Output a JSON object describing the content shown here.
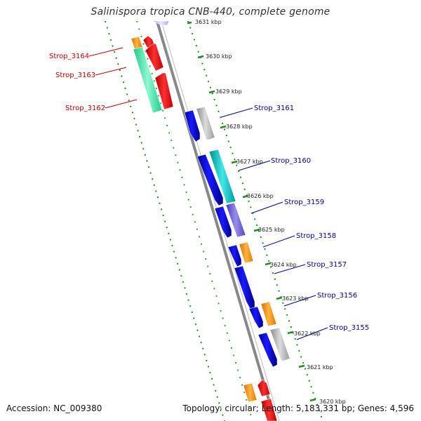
{
  "title": "Salinispora tropica CNB-440, complete genome",
  "footer": {
    "accession": "Accession: NC_009380",
    "summary": "Topology: circular; Length: 5,183,331 bp; Genes: 4,596"
  },
  "colors": {
    "forward_label": "#cc0000",
    "reverse_label": "#000099",
    "backbone": "#888888",
    "ticks": "#228b22"
  },
  "kbp_labels": [
    "3631 kbp",
    "3630 kbp",
    "3629 kbp",
    "3628 kbp",
    "3627 kbp",
    "3626 kbp",
    "3625 kbp",
    "3624 kbp",
    "3623 kbp",
    "3622 kbp",
    "3621 kbp",
    "3620 kbp"
  ],
  "gene_labels": {
    "forward": [
      "Strop_3164",
      "Strop_3163",
      "Strop_3162"
    ],
    "reverse": [
      "Strop_3161",
      "Strop_3160",
      "Strop_3159",
      "Strop_3158",
      "Strop_3157",
      "Strop_3156",
      "Strop_3155"
    ]
  }
}
